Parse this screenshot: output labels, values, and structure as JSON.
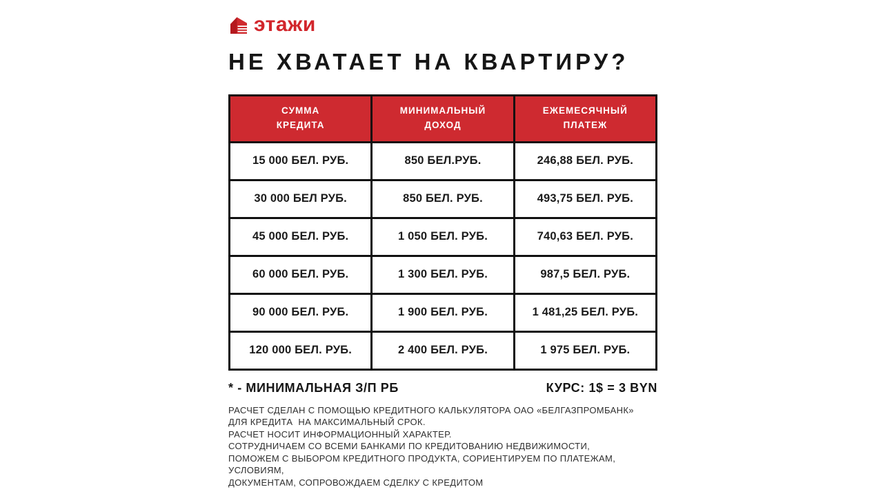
{
  "logo": {
    "text": "этажи"
  },
  "title": "НЕ ХВАТАЕТ НА КВАРТИРУ?",
  "table": {
    "headers": [
      "СУММА\nКРЕДИТА",
      "МИНИМАЛЬНЫЙ\nДОХОД",
      "ЕЖЕМЕСЯЧНЫЙ\nПЛАТЕЖ"
    ],
    "rows": [
      [
        "15 000 БЕЛ. РУБ.",
        "850 БЕЛ.РУБ.",
        "246,88 БЕЛ. РУБ."
      ],
      [
        "30 000 БЕЛ РУБ.",
        "850 БЕЛ. РУБ.",
        "493,75 БЕЛ. РУБ."
      ],
      [
        "45 000 БЕЛ. РУБ.",
        "1 050 БЕЛ. РУБ.",
        "740,63 БЕЛ. РУБ."
      ],
      [
        "60 000 БЕЛ. РУБ.",
        "1 300 БЕЛ. РУБ.",
        "987,5 БЕЛ. РУБ."
      ],
      [
        "90 000 БЕЛ. РУБ.",
        "1 900 БЕЛ. РУБ.",
        "1 481,25 БЕЛ. РУБ."
      ],
      [
        "120 000 БЕЛ. РУБ.",
        "2 400 БЕЛ. РУБ.",
        "1 975 БЕЛ. РУБ."
      ]
    ]
  },
  "footnote": {
    "left": "* - МИНИМАЛЬНАЯ З/П РБ",
    "right": "КУРС: 1$ = 3 BYN"
  },
  "disclaimer": {
    "lines": [
      "РАСЧЕТ СДЕЛАН С ПОМОЩЬЮ КРЕДИТНОГО КАЛЬКУЛЯТОРА ОАО «БЕЛГАЗПРОМБАНК»",
      "ДЛЯ КРЕДИТА  НА МАКСИМАЛЬНЫЙ СРОК.",
      "РАСЧЕТ НОСИТ ИНФОРМАЦИОННЫЙ ХАРАКТЕР.",
      "СОТРУДНИЧАЕМ СО ВСЕМИ БАНКАМИ ПО КРЕДИТОВАНИЮ НЕДВИЖИМОСТИ,",
      "ПОМОЖЕМ С ВЫБОРОМ КРЕДИТНОГО ПРОДУКТА, СОРИЕНТИРУЕМ ПО ПЛАТЕЖАМ,",
      "УСЛОВИЯМ,",
      "ДОКУМЕНТАМ, СОПРОВОЖДАЕМ СДЕЛКУ С КРЕДИТОМ"
    ]
  },
  "colors": {
    "brand-red": "#d2262c",
    "header-red": "#ce2a30",
    "border-black": "#101010",
    "text-black": "#161616",
    "text-gray": "#2e2e2e"
  },
  "chart_data": {
    "type": "table",
    "title": "НЕ ХВАТАЕТ НА КВАРТИРУ?",
    "columns": [
      "СУММА КРЕДИТА",
      "МИНИМАЛЬНЫЙ ДОХОД",
      "ЕЖЕМЕСЯЧНЫЙ ПЛАТЕЖ"
    ],
    "currency": "БЕЛ. РУБ. (BYN)",
    "credit_amounts": [
      15000,
      30000,
      45000,
      60000,
      90000,
      120000
    ],
    "minimum_income": [
      850,
      850,
      1050,
      1300,
      1900,
      2400
    ],
    "monthly_payment": [
      246.88,
      493.75,
      740.63,
      987.5,
      1481.25,
      1975
    ],
    "exchange_rate": "1$ = 3 BYN",
    "footnote": "* - МИНИМАЛЬНАЯ З/П РБ",
    "source_note": "Расчет сделан с помощью кредитного калькулятора ОАО «Белгазпромбанк» для кредита на максимальный срок; расчет носит информационный характер."
  }
}
